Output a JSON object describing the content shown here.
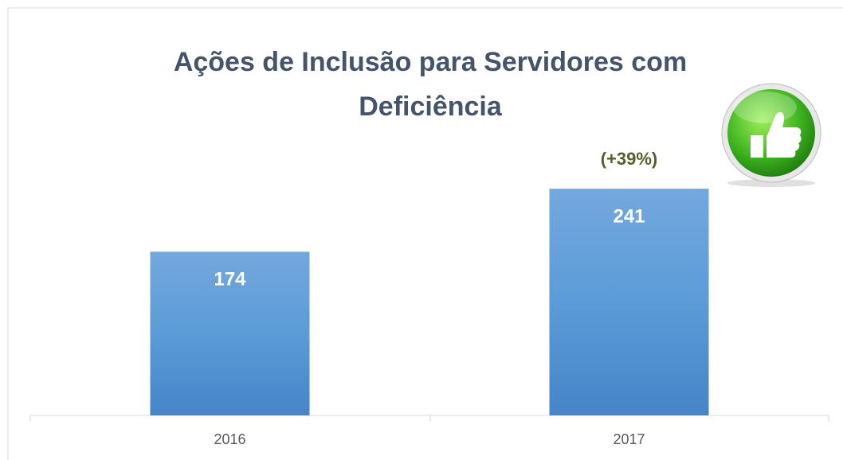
{
  "chart_data": {
    "type": "bar",
    "title": "Ações de Inclusão para Servidores com Deficiência",
    "categories": [
      "2016",
      "2017"
    ],
    "values": [
      174,
      241
    ],
    "color": "#5b9bd5",
    "annotation": "(+39%)"
  }
}
